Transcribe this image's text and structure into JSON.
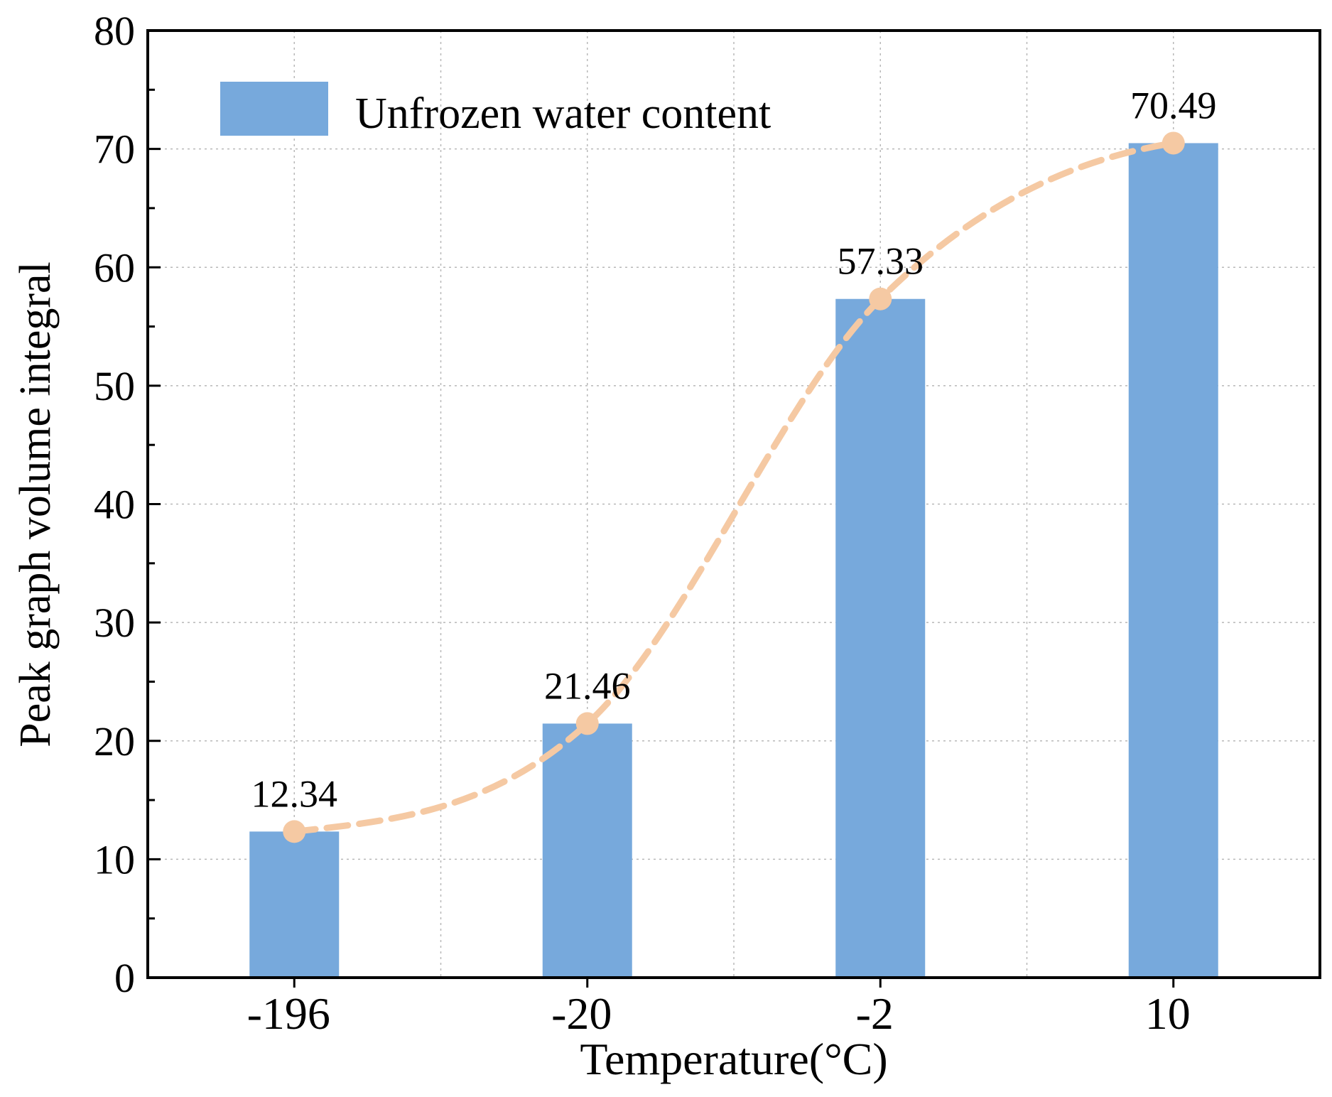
{
  "chart_data": {
    "type": "bar",
    "title": "",
    "xlabel": "Temperature(°C)",
    "ylabel": "Peak graph volume integral",
    "categories": [
      "-196",
      "-20",
      "-2",
      "10"
    ],
    "series": [
      {
        "name": "Unfrozen water content",
        "values": [
          12.34,
          21.46,
          57.33,
          70.49
        ],
        "labels": [
          "12.34",
          "21.46",
          "57.33",
          "70.49"
        ],
        "color": "#77a9dc"
      }
    ],
    "trend_line": {
      "style": "dashed-smooth",
      "color": "#f5c9a3",
      "values": [
        12.34,
        21.46,
        57.33,
        70.49
      ]
    },
    "ylim": [
      0,
      80
    ],
    "yticks": [
      "0",
      "10",
      "20",
      "30",
      "40",
      "50",
      "60",
      "70",
      "80"
    ],
    "grid": true,
    "legend_position": "top-left"
  }
}
